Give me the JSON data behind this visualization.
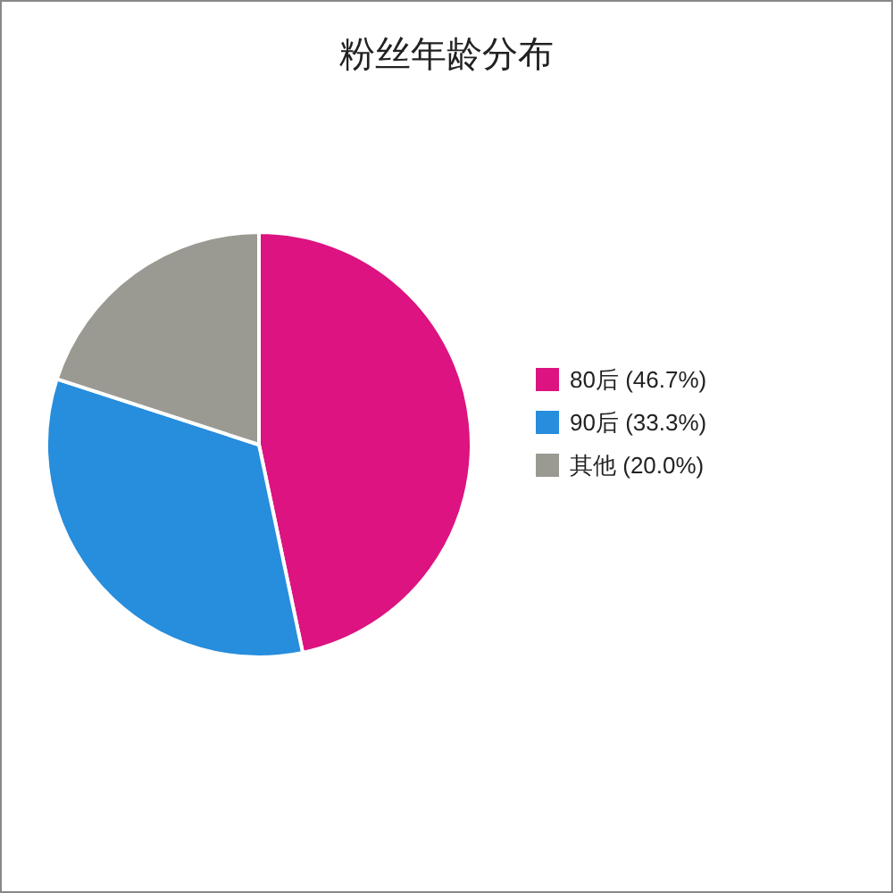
{
  "chart_data": {
    "type": "pie",
    "title": "粉丝年龄分布",
    "categories": [
      "80后 (46.7%)",
      "90后 (33.3%)",
      "其他 (20.0%)"
    ],
    "values": [
      46.7,
      33.3,
      20.0
    ],
    "colors": [
      "#dc1380",
      "#278ddd",
      "#9a9a93"
    ],
    "legend": "right"
  }
}
